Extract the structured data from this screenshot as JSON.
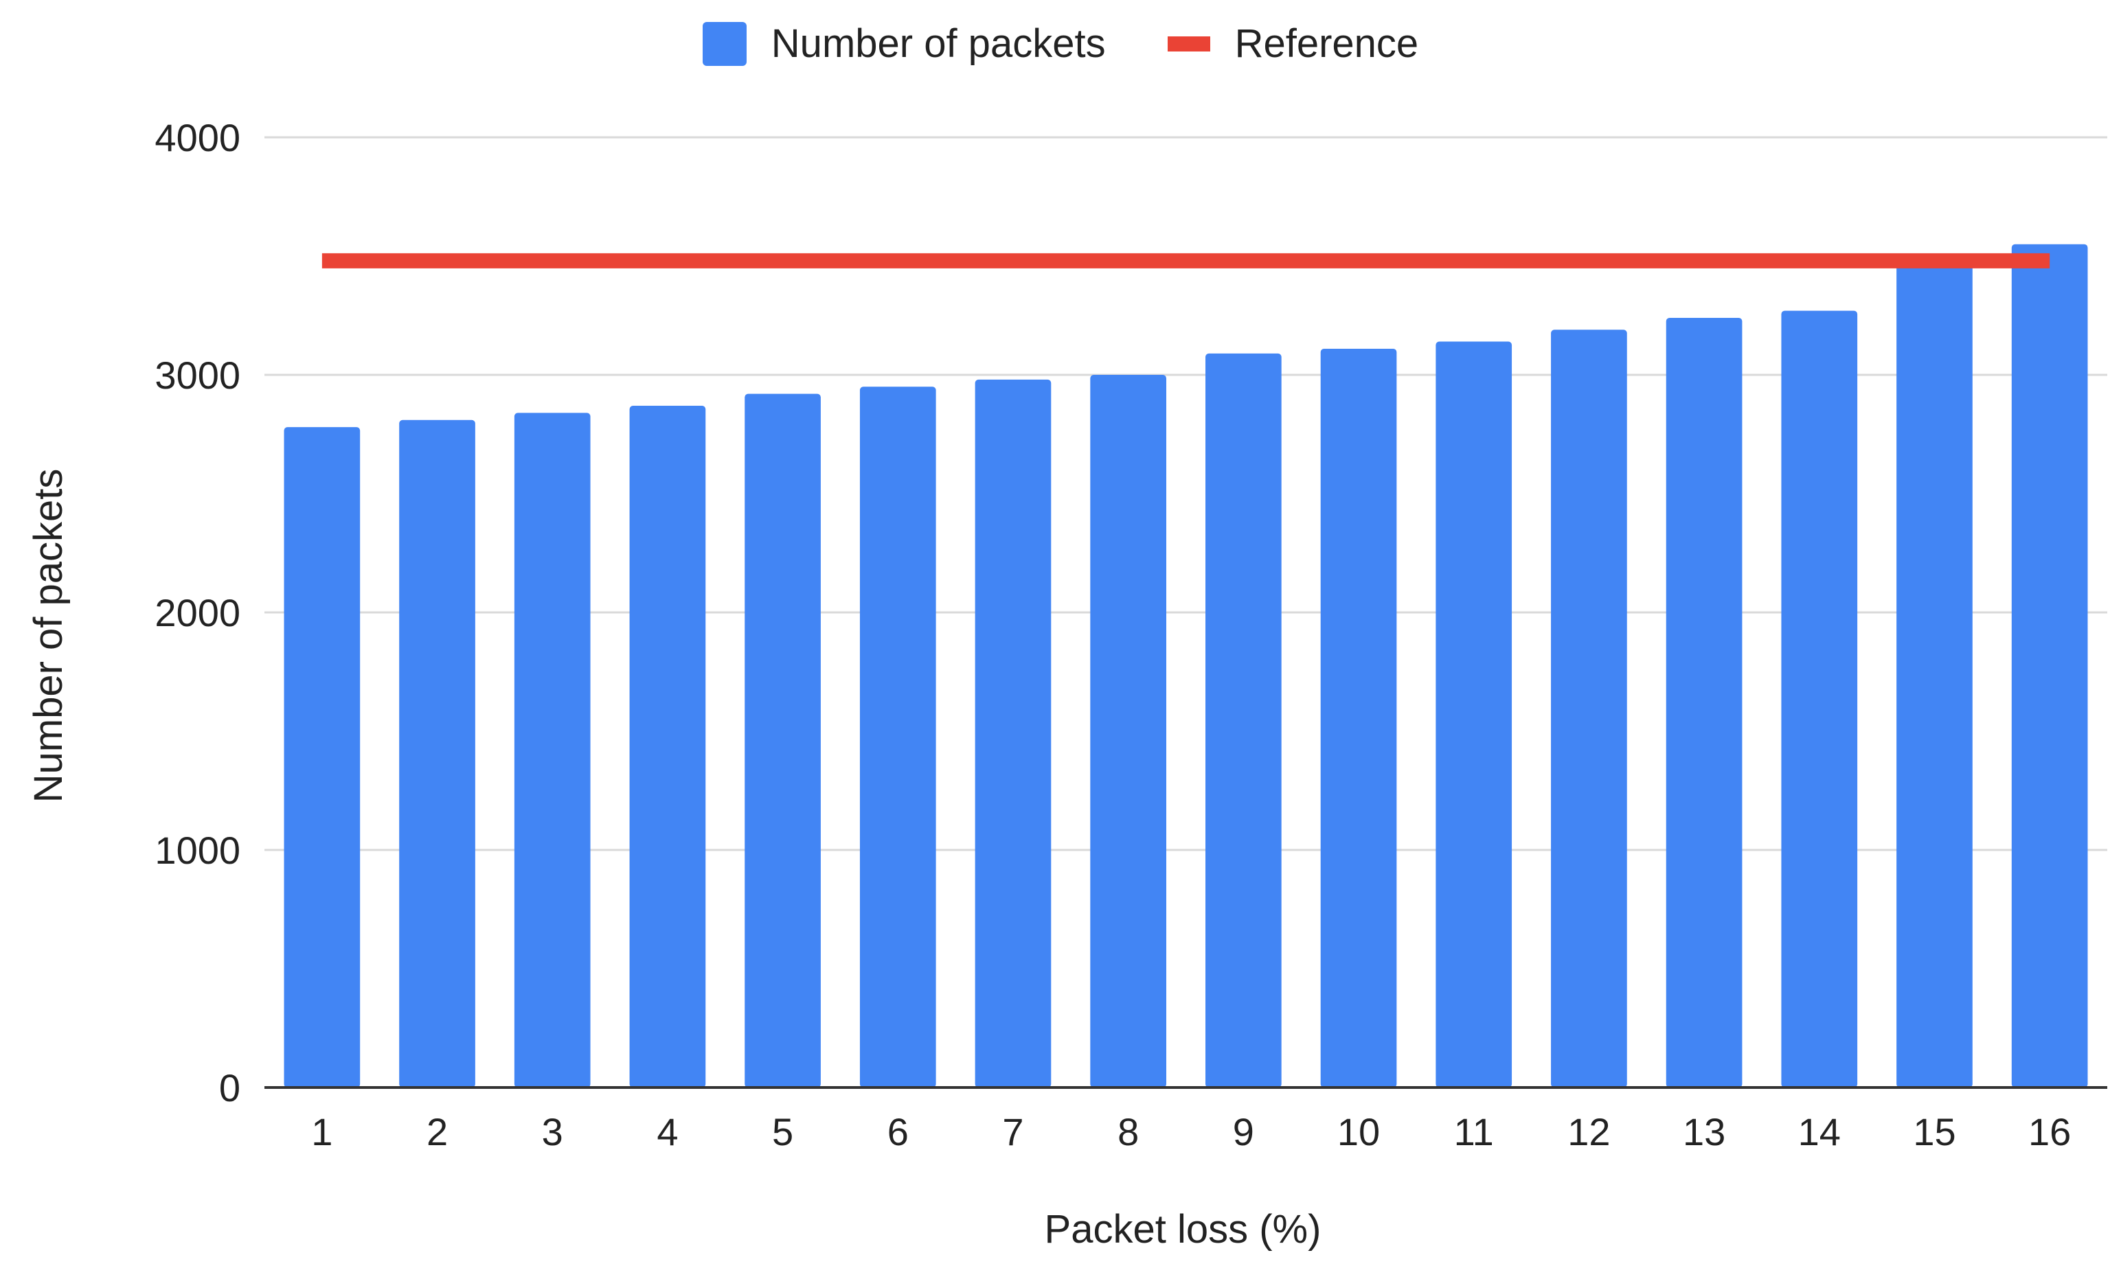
{
  "chart_data": {
    "type": "bar",
    "xlabel": "Packet loss (%)",
    "ylabel": "Number of packets",
    "ylim": [
      0,
      4000
    ],
    "yticks": [
      0,
      1000,
      2000,
      3000,
      4000
    ],
    "grid": true,
    "legend_position": "top",
    "categories": [
      "1",
      "2",
      "3",
      "4",
      "5",
      "6",
      "7",
      "8",
      "9",
      "10",
      "11",
      "12",
      "13",
      "14",
      "15",
      "16"
    ],
    "series": [
      {
        "name": "Number of packets",
        "kind": "bar",
        "color": "#4285F4",
        "values": [
          2780,
          2810,
          2840,
          2870,
          2920,
          2950,
          2980,
          3000,
          3090,
          3110,
          3140,
          3190,
          3240,
          3270,
          3480,
          3550
        ]
      },
      {
        "name": "Reference",
        "kind": "line",
        "color": "#EA4335",
        "values": [
          3480,
          3480,
          3480,
          3480,
          3480,
          3480,
          3480,
          3480,
          3480,
          3480,
          3480,
          3480,
          3480,
          3480,
          3480,
          3480
        ]
      }
    ]
  }
}
